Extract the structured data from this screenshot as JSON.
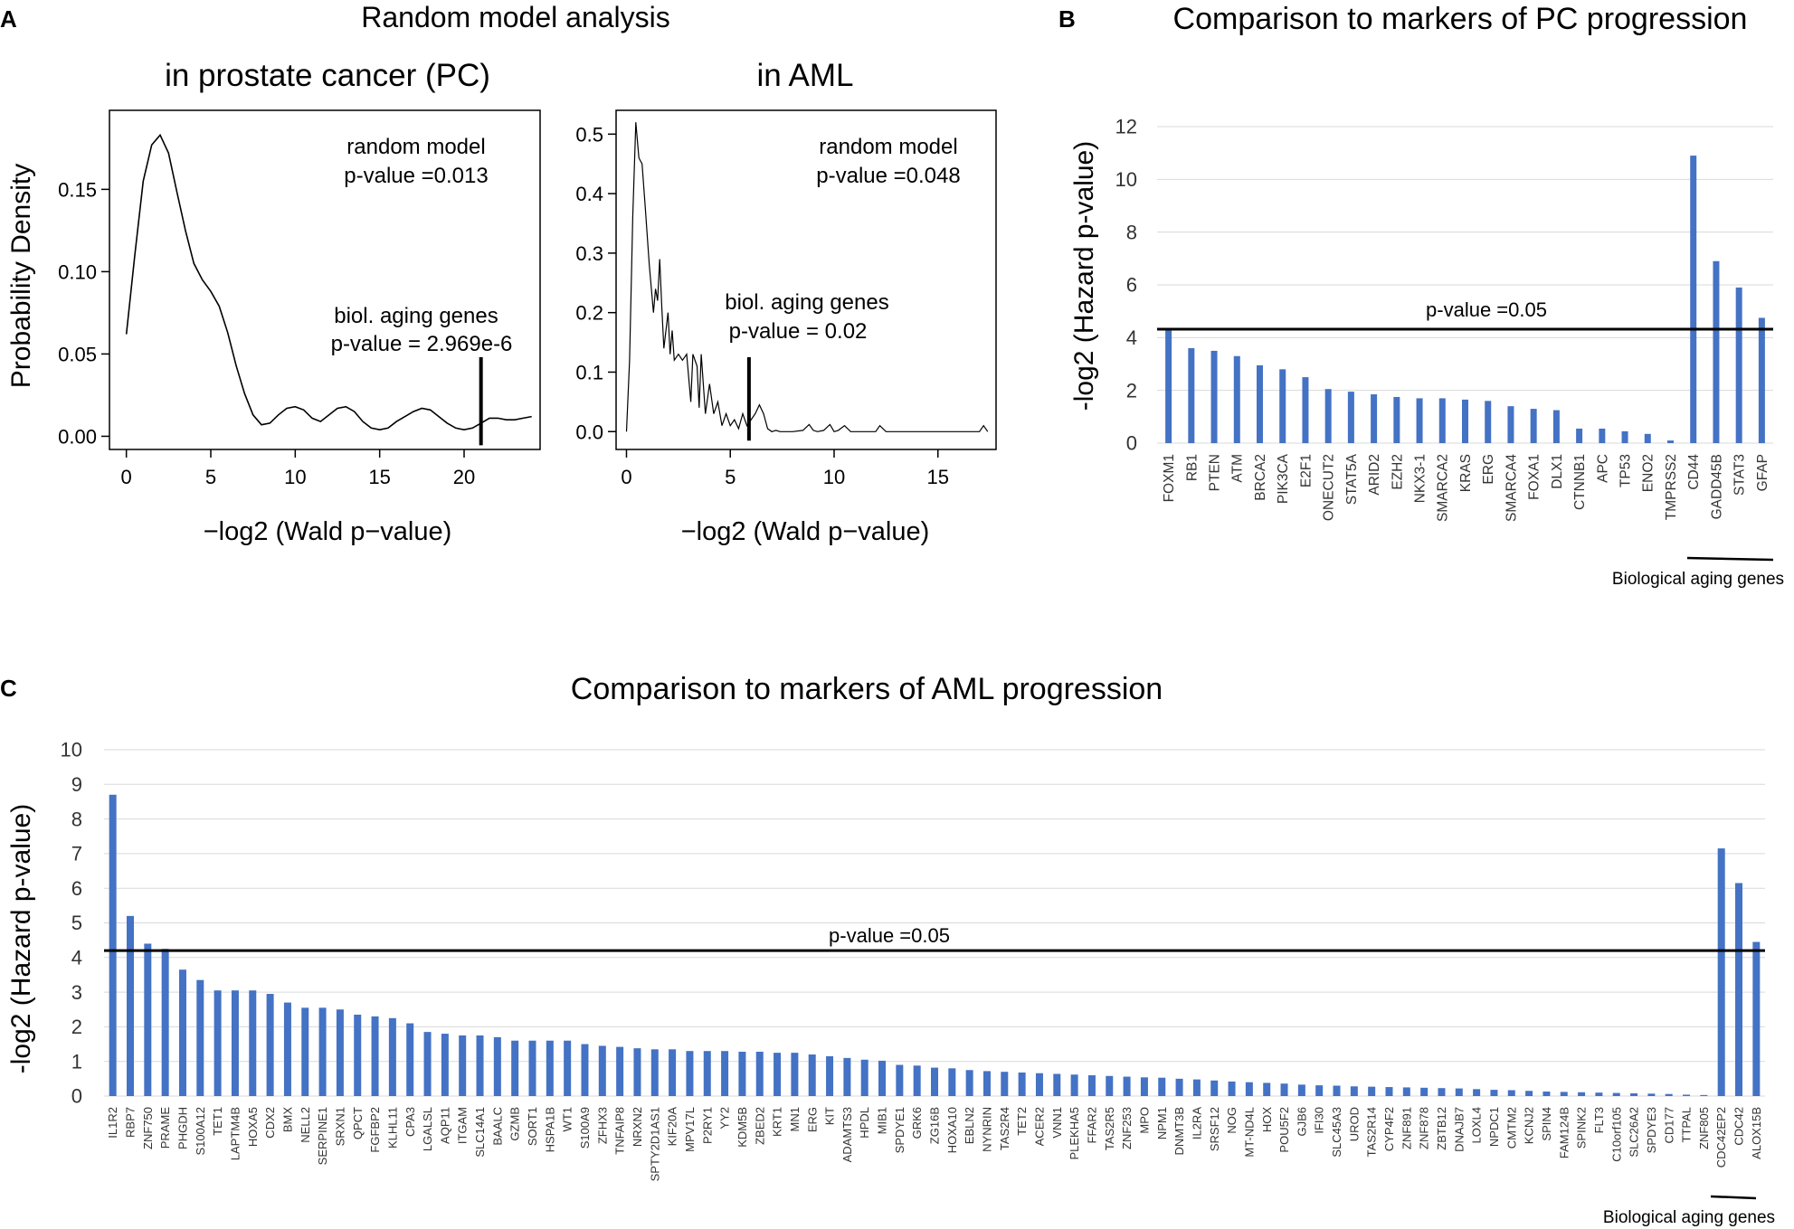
{
  "panel_letters": {
    "a": "A",
    "b": "B",
    "c": "C"
  },
  "panel_a": {
    "title": "Random model analysis",
    "xlabel": "−log2 (Wald p−value)",
    "ylabel": "Probability Density"
  },
  "panel_b": {
    "title": "Comparison to markers of PC progression"
  },
  "panel_c": {
    "title": "Comparison to markers of AML progression"
  },
  "chart_data": [
    {
      "id": "a1",
      "type": "line",
      "title": "in prostate cancer (PC)",
      "xlabel": "−log2 (Wald p−value)",
      "ylabel": "Probability Density",
      "xlim": [
        -1,
        24.5
      ],
      "ylim": [
        -0.008,
        0.198
      ],
      "xticks": [
        0,
        5,
        10,
        15,
        20
      ],
      "yticks": [
        0.0,
        0.05,
        0.1,
        0.15
      ],
      "ytick_labels": [
        "0.00",
        "0.05",
        "0.10",
        "0.15"
      ],
      "x": [
        0,
        0.5,
        1,
        1.5,
        2,
        2.5,
        3,
        3.5,
        4,
        4.5,
        5,
        5.5,
        6,
        6.5,
        7,
        7.5,
        8,
        8.5,
        9,
        9.5,
        10,
        10.5,
        11,
        11.5,
        12,
        12.5,
        13,
        13.5,
        14,
        14.5,
        15,
        15.5,
        16,
        16.5,
        17,
        17.5,
        18,
        18.5,
        19,
        19.5,
        20,
        20.5,
        21,
        21.5,
        22,
        22.5,
        23,
        23.5,
        24
      ],
      "y": [
        0.062,
        0.11,
        0.155,
        0.177,
        0.183,
        0.172,
        0.148,
        0.125,
        0.105,
        0.095,
        0.088,
        0.079,
        0.063,
        0.043,
        0.026,
        0.013,
        0.007,
        0.008,
        0.013,
        0.017,
        0.018,
        0.016,
        0.011,
        0.009,
        0.013,
        0.017,
        0.018,
        0.015,
        0.009,
        0.005,
        0.004,
        0.005,
        0.009,
        0.012,
        0.015,
        0.017,
        0.016,
        0.012,
        0.008,
        0.005,
        0.004,
        0.005,
        0.008,
        0.011,
        0.011,
        0.01,
        0.01,
        0.011,
        0.012
      ],
      "annotations": [
        {
          "text": "random model",
          "text2": "p-value =0.013"
        },
        {
          "text": "biol. aging genes",
          "text2": "p-value = 2.969e-6",
          "x": 21.0,
          "y_top": 0.048
        }
      ]
    },
    {
      "id": "a2",
      "type": "line",
      "title": "in AML",
      "xlabel": "−log2 (Wald p−value)",
      "xlim": [
        -0.5,
        17.8
      ],
      "ylim": [
        -0.03,
        0.54
      ],
      "xticks": [
        0,
        5,
        10,
        15
      ],
      "yticks": [
        0.0,
        0.1,
        0.2,
        0.3,
        0.4,
        0.5
      ],
      "ytick_labels": [
        "0.0",
        "0.1",
        "0.2",
        "0.3",
        "0.4",
        "0.5"
      ],
      "x": [
        0,
        0.15,
        0.3,
        0.45,
        0.6,
        0.75,
        0.9,
        1.1,
        1.3,
        1.4,
        1.5,
        1.6,
        1.7,
        1.8,
        2,
        2.1,
        2.2,
        2.3,
        2.5,
        2.7,
        2.9,
        3.1,
        3.2,
        3.4,
        3.5,
        3.6,
        3.8,
        4,
        4.2,
        4.4,
        4.6,
        4.8,
        5,
        5.2,
        5.4,
        5.6,
        5.8,
        6,
        6.2,
        6.4,
        6.6,
        6.8,
        7,
        7.2,
        7.4,
        8,
        8.5,
        8.8,
        9,
        9.2,
        9.5,
        9.8,
        10,
        10.2,
        10.5,
        10.8,
        11,
        11.5,
        12,
        12.2,
        12.5,
        13,
        14,
        15,
        16,
        17,
        17.2,
        17.4
      ],
      "y": [
        0,
        0.12,
        0.36,
        0.52,
        0.46,
        0.45,
        0.38,
        0.28,
        0.2,
        0.24,
        0.22,
        0.29,
        0.21,
        0.14,
        0.2,
        0.13,
        0.17,
        0.12,
        0.13,
        0.12,
        0.13,
        0.05,
        0.13,
        0.11,
        0.04,
        0.13,
        0.03,
        0.08,
        0.03,
        0.05,
        0.01,
        0.03,
        0.01,
        0.02,
        0.005,
        0.03,
        0.01,
        0.02,
        0.03,
        0.045,
        0.03,
        0.005,
        0,
        0.002,
        0,
        0,
        0.002,
        0.012,
        0.002,
        0,
        0.002,
        0.012,
        0,
        0.002,
        0.01,
        0,
        0,
        0,
        0,
        0.01,
        0,
        0,
        0,
        0,
        0,
        0,
        0.01,
        0
      ],
      "annotations": [
        {
          "text": "random model",
          "text2": "p-value =0.048"
        },
        {
          "text": "biol. aging genes",
          "text2": "p-value = 0.02",
          "x": 5.9,
          "y_top": 0.125
        }
      ]
    },
    {
      "id": "b",
      "type": "bar",
      "title": "Comparison to markers of PC progression",
      "ylabel": "-log2 (Hazard p-value)",
      "ylim": [
        0,
        12
      ],
      "yticks": [
        0,
        2,
        4,
        6,
        8,
        10,
        12
      ],
      "threshold": {
        "value": 4.32,
        "label": "p-value =0.05"
      },
      "categories": [
        "FOXM1",
        "RB1",
        "PTEN",
        "ATM",
        "BRCA2",
        "PIK3CA",
        "E2F1",
        "ONECUT2",
        "STAT5A",
        "ARID2",
        "EZH2",
        "NKX3-1",
        "SMARCA2",
        "KRAS",
        "ERG",
        "SMARCA4",
        "FOXA1",
        "DLX1",
        "CTNNB1",
        "APC",
        "TP53",
        "ENO2",
        "TMPRSS2",
        "CD44",
        "GADD45B",
        "STAT3",
        "GFAP"
      ],
      "values": [
        4.3,
        3.6,
        3.5,
        3.3,
        2.95,
        2.8,
        2.5,
        2.05,
        1.95,
        1.85,
        1.75,
        1.7,
        1.7,
        1.65,
        1.6,
        1.4,
        1.3,
        1.25,
        0.55,
        0.55,
        0.45,
        0.35,
        0.1,
        10.9,
        6.9,
        5.9,
        4.75
      ],
      "group_label": "Biological aging genes",
      "group_range": [
        23,
        26
      ]
    },
    {
      "id": "c",
      "type": "bar",
      "title": "Comparison to markers of AML progression",
      "ylabel": "-log2 (Hazard p-value)",
      "ylim": [
        0,
        10
      ],
      "yticks": [
        0,
        1,
        2,
        3,
        4,
        5,
        6,
        7,
        8,
        9,
        10
      ],
      "threshold": {
        "value": 4.2,
        "label": "p-value =0.05"
      },
      "categories": [
        "IL1R2",
        "RBP7",
        "ZNF750",
        "PRAME",
        "PHGDH",
        "S100A12",
        "TET1",
        "LAPTM4B",
        "HOXA5",
        "CDX2",
        "BMX",
        "NELL2",
        "SERPINE1",
        "SRXN1",
        "QPCT",
        "FGFBP2",
        "KLHL11",
        "CPA3",
        "LGALSL",
        "AQP11",
        "ITGAM",
        "SLC14A1",
        "BAALC",
        "GZMB",
        "SORT1",
        "HSPA1B",
        "WT1",
        "S100A9",
        "ZFHX3",
        "TNFAIP8",
        "NRXN2",
        "SPTY2D1AS1",
        "KIF20A",
        "MPV17L",
        "P2RY1",
        "YY2",
        "KDM5B",
        "ZBED2",
        "KRT1",
        "MN1",
        "ERG",
        "KIT",
        "ADAMTS3",
        "HPDL",
        "MIB1",
        "SPDYE1",
        "GRK6",
        "ZG16B",
        "HOXA10",
        "EBLN2",
        "NYNRIN",
        "TAS2R4",
        "TET2",
        "ACER2",
        "VNN1",
        "PLEKHA5",
        "FFAR2",
        "TAS2R5",
        "ZNF253",
        "MPO",
        "NPM1",
        "DNMT3B",
        "IL2RA",
        "SRSF12",
        "NOG",
        "MT-ND4L",
        "HOX",
        "POU5F2",
        "GJB6",
        "IFI30",
        "SLC45A3",
        "UROD",
        "TAS2R14",
        "CYP4F2",
        "ZNF891",
        "ZNF878",
        "ZBTB12",
        "DNAJB7",
        "LOXL4",
        "NPDC1",
        "CMTM2",
        "KCNJ2",
        "SPIN4",
        "FAM124B",
        "SPINK2",
        "FLT3",
        "C10orf105",
        "SLC26A2",
        "SPDYE3",
        "CD177",
        "TTPAL",
        "ZNF805",
        "CDC42EP2",
        "CDC42",
        "ALOX15B"
      ],
      "values": [
        8.7,
        5.2,
        4.4,
        4.25,
        3.65,
        3.35,
        3.05,
        3.05,
        3.05,
        2.95,
        2.7,
        2.55,
        2.55,
        2.5,
        2.35,
        2.3,
        2.25,
        2.1,
        1.85,
        1.8,
        1.75,
        1.75,
        1.7,
        1.6,
        1.6,
        1.6,
        1.6,
        1.5,
        1.45,
        1.42,
        1.38,
        1.35,
        1.35,
        1.3,
        1.3,
        1.3,
        1.28,
        1.28,
        1.25,
        1.25,
        1.2,
        1.15,
        1.1,
        1.05,
        1.02,
        0.9,
        0.88,
        0.82,
        0.8,
        0.75,
        0.72,
        0.7,
        0.68,
        0.66,
        0.64,
        0.62,
        0.6,
        0.58,
        0.56,
        0.54,
        0.53,
        0.5,
        0.48,
        0.45,
        0.42,
        0.4,
        0.38,
        0.36,
        0.33,
        0.31,
        0.3,
        0.28,
        0.27,
        0.26,
        0.25,
        0.24,
        0.23,
        0.22,
        0.2,
        0.18,
        0.17,
        0.15,
        0.13,
        0.12,
        0.11,
        0.1,
        0.09,
        0.08,
        0.07,
        0.06,
        0.04,
        0.03,
        7.15,
        6.15,
        4.45
      ],
      "group_label": "Biological aging genes",
      "group_range": [
        92,
        94
      ]
    }
  ],
  "colors": {
    "bar": "#4472c4",
    "line": "#000000",
    "grid": "#d9d9d9"
  }
}
